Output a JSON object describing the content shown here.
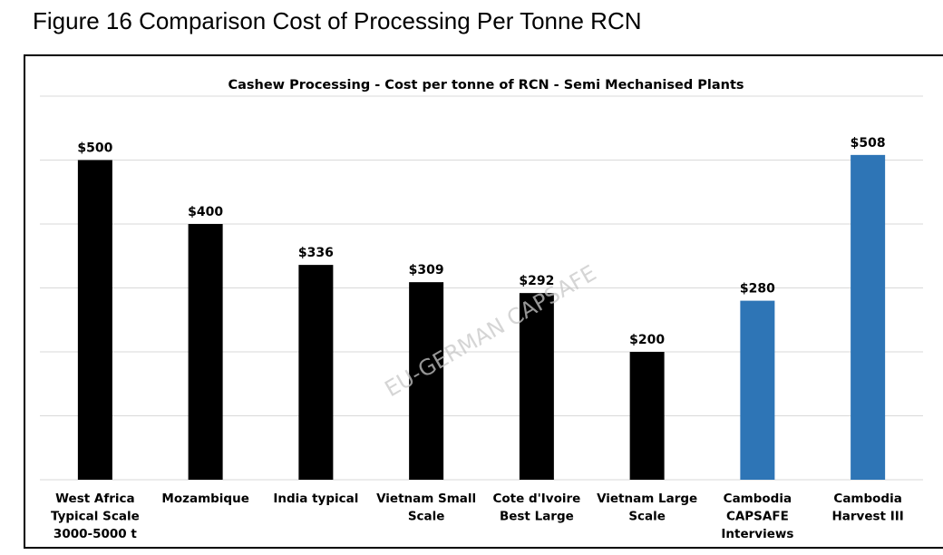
{
  "caption": "Figure 16 Comparison Cost of Processing Per Tonne RCN",
  "watermark": "EU-GERMAN CAPSAFE",
  "colors": {
    "black_bars": "#000000",
    "blue_bars": "#2e75b6",
    "grid": "#d9d9d9"
  },
  "chart_data": {
    "type": "bar",
    "title": "Cashew Processing  - Cost per tonne of RCN - Semi Mechanised Plants",
    "xlabel": "",
    "ylabel": "",
    "ylim": [
      0,
      600
    ],
    "gridlines": [
      0,
      100,
      200,
      300,
      400,
      500,
      600
    ],
    "grid": true,
    "legend": "none",
    "categories": [
      [
        "West Africa",
        "Typical Scale",
        "3000-5000 t"
      ],
      [
        "Mozambique"
      ],
      [
        "India typical"
      ],
      [
        "Vietnam Small",
        "Scale"
      ],
      [
        "Cote d'Ivoire",
        "Best Large"
      ],
      [
        "Vietnam Large",
        "Scale"
      ],
      [
        "Cambodia",
        "CAPSAFE",
        "Interviews"
      ],
      [
        "Cambodia",
        "Harvest III"
      ]
    ],
    "values": [
      500,
      400,
      336,
      309,
      292,
      200,
      280,
      508
    ],
    "data_labels": [
      "$500",
      "$400",
      "$336",
      "$309",
      "$292",
      "$200",
      "$280",
      "$508"
    ],
    "bar_colors": [
      "#000000",
      "#000000",
      "#000000",
      "#000000",
      "#000000",
      "#000000",
      "#2e75b6",
      "#2e75b6"
    ]
  }
}
